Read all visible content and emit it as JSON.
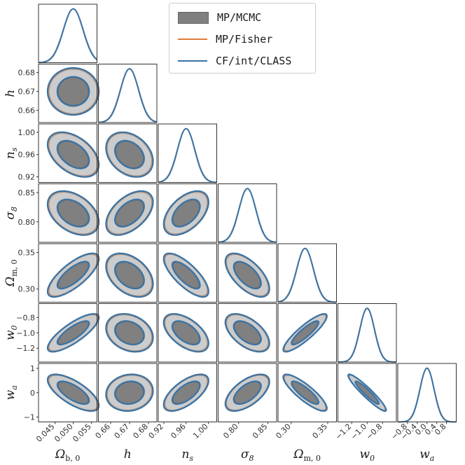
{
  "chart_data": {
    "type": "corner",
    "parameters": [
      {
        "key": "Omega_b0",
        "label": "Ωb,0",
        "base": "Ω",
        "sub": "b, 0",
        "ticks": [
          0.045,
          0.05,
          0.055
        ],
        "tick_labels": [
          "0.045",
          "0.050",
          "0.055"
        ],
        "range": [
          0.0405,
          0.0565
        ],
        "mean": 0.05,
        "sigma": 0.0027
      },
      {
        "key": "h",
        "label": "h",
        "base": "h",
        "sub": "",
        "ticks": [
          0.66,
          0.67,
          0.68
        ],
        "tick_labels": [
          "0.66",
          "0.67",
          "0.68"
        ],
        "range": [
          0.6535,
          0.6845
        ],
        "mean": 0.67,
        "sigma": 0.0048
      },
      {
        "key": "n_s",
        "label": "ns",
        "base": "n",
        "sub": "s",
        "ticks": [
          0.92,
          0.96,
          1.0
        ],
        "tick_labels": [
          "0.92",
          "0.96",
          "1.00"
        ],
        "range": [
          0.91,
          1.015
        ],
        "mean": 0.96,
        "sigma": 0.0155
      },
      {
        "key": "sigma_8",
        "label": "σ8",
        "base": "σ",
        "sub": "8",
        "ticks": [
          0.8,
          0.85
        ],
        "tick_labels": [
          "0.80",
          "0.85"
        ],
        "range": [
          0.765,
          0.865
        ],
        "mean": 0.815,
        "sigma": 0.0145
      },
      {
        "key": "Omega_m0",
        "label": "Ωm,0",
        "base": "Ω",
        "sub": "m, 0",
        "ticks": [
          0.3,
          0.35
        ],
        "tick_labels": [
          "0.30",
          "0.35"
        ],
        "range": [
          0.282,
          0.362
        ],
        "mean": 0.319,
        "sigma": 0.0115
      },
      {
        "key": "w_0",
        "label": "w0",
        "base": "w",
        "sub": "0",
        "ticks": [
          -1.2,
          -1.0,
          -0.8
        ],
        "tick_labels": [
          "−1.2",
          "−1.0",
          "−0.8"
        ],
        "range": [
          -1.38,
          -0.62
        ],
        "mean": -1.0,
        "sigma": 0.095
      },
      {
        "key": "w_a",
        "label": "wa",
        "base": "w",
        "sub": "a",
        "ticks": [
          -0.8,
          -0.4,
          0.0,
          0.4,
          0.8
        ],
        "tick_labels": [
          "−0.8",
          "−0.4",
          "0.0",
          "0.4",
          "0.8"
        ],
        "y_ticks": [
          -1,
          0,
          1
        ],
        "y_tick_labels": [
          "−1",
          "0",
          "1"
        ],
        "range": [
          -1.2,
          1.2
        ],
        "mean": 0.0,
        "sigma": 0.29
      }
    ],
    "correlations": {
      "h|Omega_b0": 0.0,
      "n_s|Omega_b0": -0.45,
      "n_s|h": -0.3,
      "sigma_8|Omega_b0": -0.4,
      "sigma_8|h": 0.5,
      "sigma_8|n_s": 0.5,
      "Omega_m0|Omega_b0": 0.75,
      "Omega_m0|h": -0.4,
      "Omega_m0|n_s": -0.75,
      "Omega_m0|sigma_8": -0.62,
      "w_0|Omega_b0": 0.8,
      "w_0|h": -0.25,
      "w_0|n_s": -0.55,
      "w_0|sigma_8": -0.55,
      "w_0|Omega_m0": 0.88,
      "w_a|Omega_b0": -0.7,
      "w_a|h": 0.1,
      "w_a|n_s": 0.65,
      "w_a|sigma_8": 0.6,
      "w_a|Omega_m0": -0.85,
      "w_a|w_0": -0.94
    },
    "contour_levels": [
      "68%",
      "95%"
    ],
    "series": [
      {
        "name": "MP/MCMC",
        "style": "filled contours",
        "inner_color": "#808080",
        "outer_color": "#cccccc",
        "edge_color": "#999999"
      },
      {
        "name": "MP/Fisher",
        "style": "line",
        "color": "#e07b39"
      },
      {
        "name": "CF/int/CLASS",
        "style": "line",
        "color": "#3a73a5"
      }
    ],
    "legend_placement": "top-right",
    "grid": false
  }
}
